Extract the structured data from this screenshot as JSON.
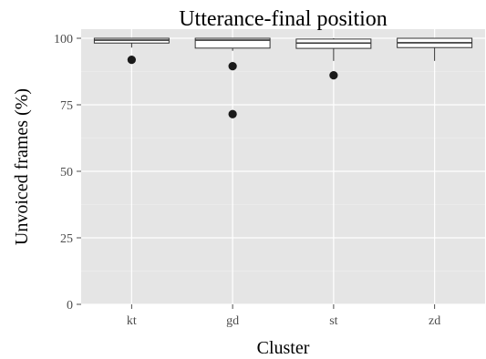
{
  "chart_data": {
    "type": "box",
    "title": "Utterance-final position",
    "xlabel": "Cluster",
    "ylabel": "Unvoiced frames (%)",
    "categories": [
      "kt",
      "gd",
      "st",
      "zd"
    ],
    "ylim": [
      0,
      100
    ],
    "yticks": [
      0,
      25,
      50,
      75,
      100
    ],
    "grid": true,
    "panel_background": "#e5e5e5",
    "grid_color": "#ffffff",
    "boxes": [
      {
        "category": "kt",
        "q1": 98.2,
        "median": 99.3,
        "q3": 100,
        "whisker_low": 96.5,
        "whisker_high": 100,
        "outliers": [
          91.9
        ]
      },
      {
        "category": "gd",
        "q1": 96.3,
        "median": 99.3,
        "q3": 100,
        "whisker_low": 95.3,
        "whisker_high": 100,
        "outliers": [
          89.5,
          71.5
        ]
      },
      {
        "category": "st",
        "q1": 96.2,
        "median": 98.2,
        "q3": 99.7,
        "whisker_low": 91.5,
        "whisker_high": 100,
        "outliers": [
          86.1
        ]
      },
      {
        "category": "zd",
        "q1": 96.5,
        "median": 98.3,
        "q3": 100,
        "whisker_low": 91.5,
        "whisker_high": 100,
        "outliers": []
      }
    ]
  }
}
